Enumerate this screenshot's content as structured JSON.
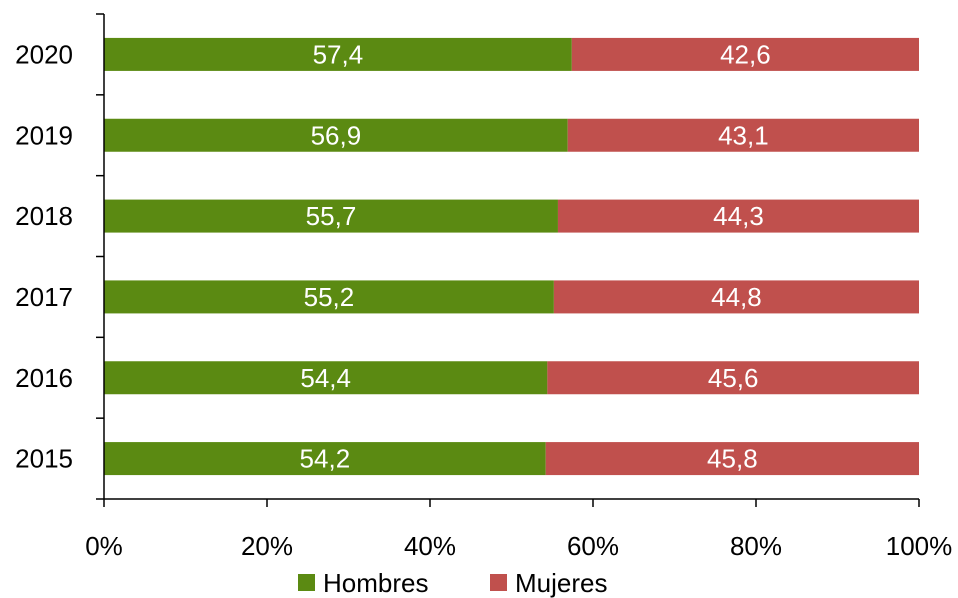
{
  "chart_data": {
    "type": "bar",
    "orientation": "horizontal",
    "stacked": "percent",
    "categories": [
      "2015",
      "2016",
      "2017",
      "2018",
      "2019",
      "2020"
    ],
    "series": [
      {
        "name": "Hombres",
        "color": "#5b8a12",
        "values": [
          54.2,
          54.4,
          55.2,
          55.7,
          56.9,
          57.4
        ],
        "labels": [
          "54,2",
          "54,4",
          "55,2",
          "55,7",
          "56,9",
          "57,4"
        ]
      },
      {
        "name": "Mujeres",
        "color": "#c0504d",
        "values": [
          45.8,
          45.6,
          44.8,
          44.3,
          43.1,
          42.6
        ],
        "labels": [
          "45,8",
          "45,6",
          "44,8",
          "44,3",
          "43,1",
          "42,6"
        ]
      }
    ],
    "x_ticks": [
      "0%",
      "20%",
      "40%",
      "60%",
      "80%",
      "100%"
    ],
    "xlim": [
      0,
      100
    ],
    "title": "",
    "xlabel": "",
    "ylabel": "",
    "grid": false,
    "legend": "bottom"
  }
}
